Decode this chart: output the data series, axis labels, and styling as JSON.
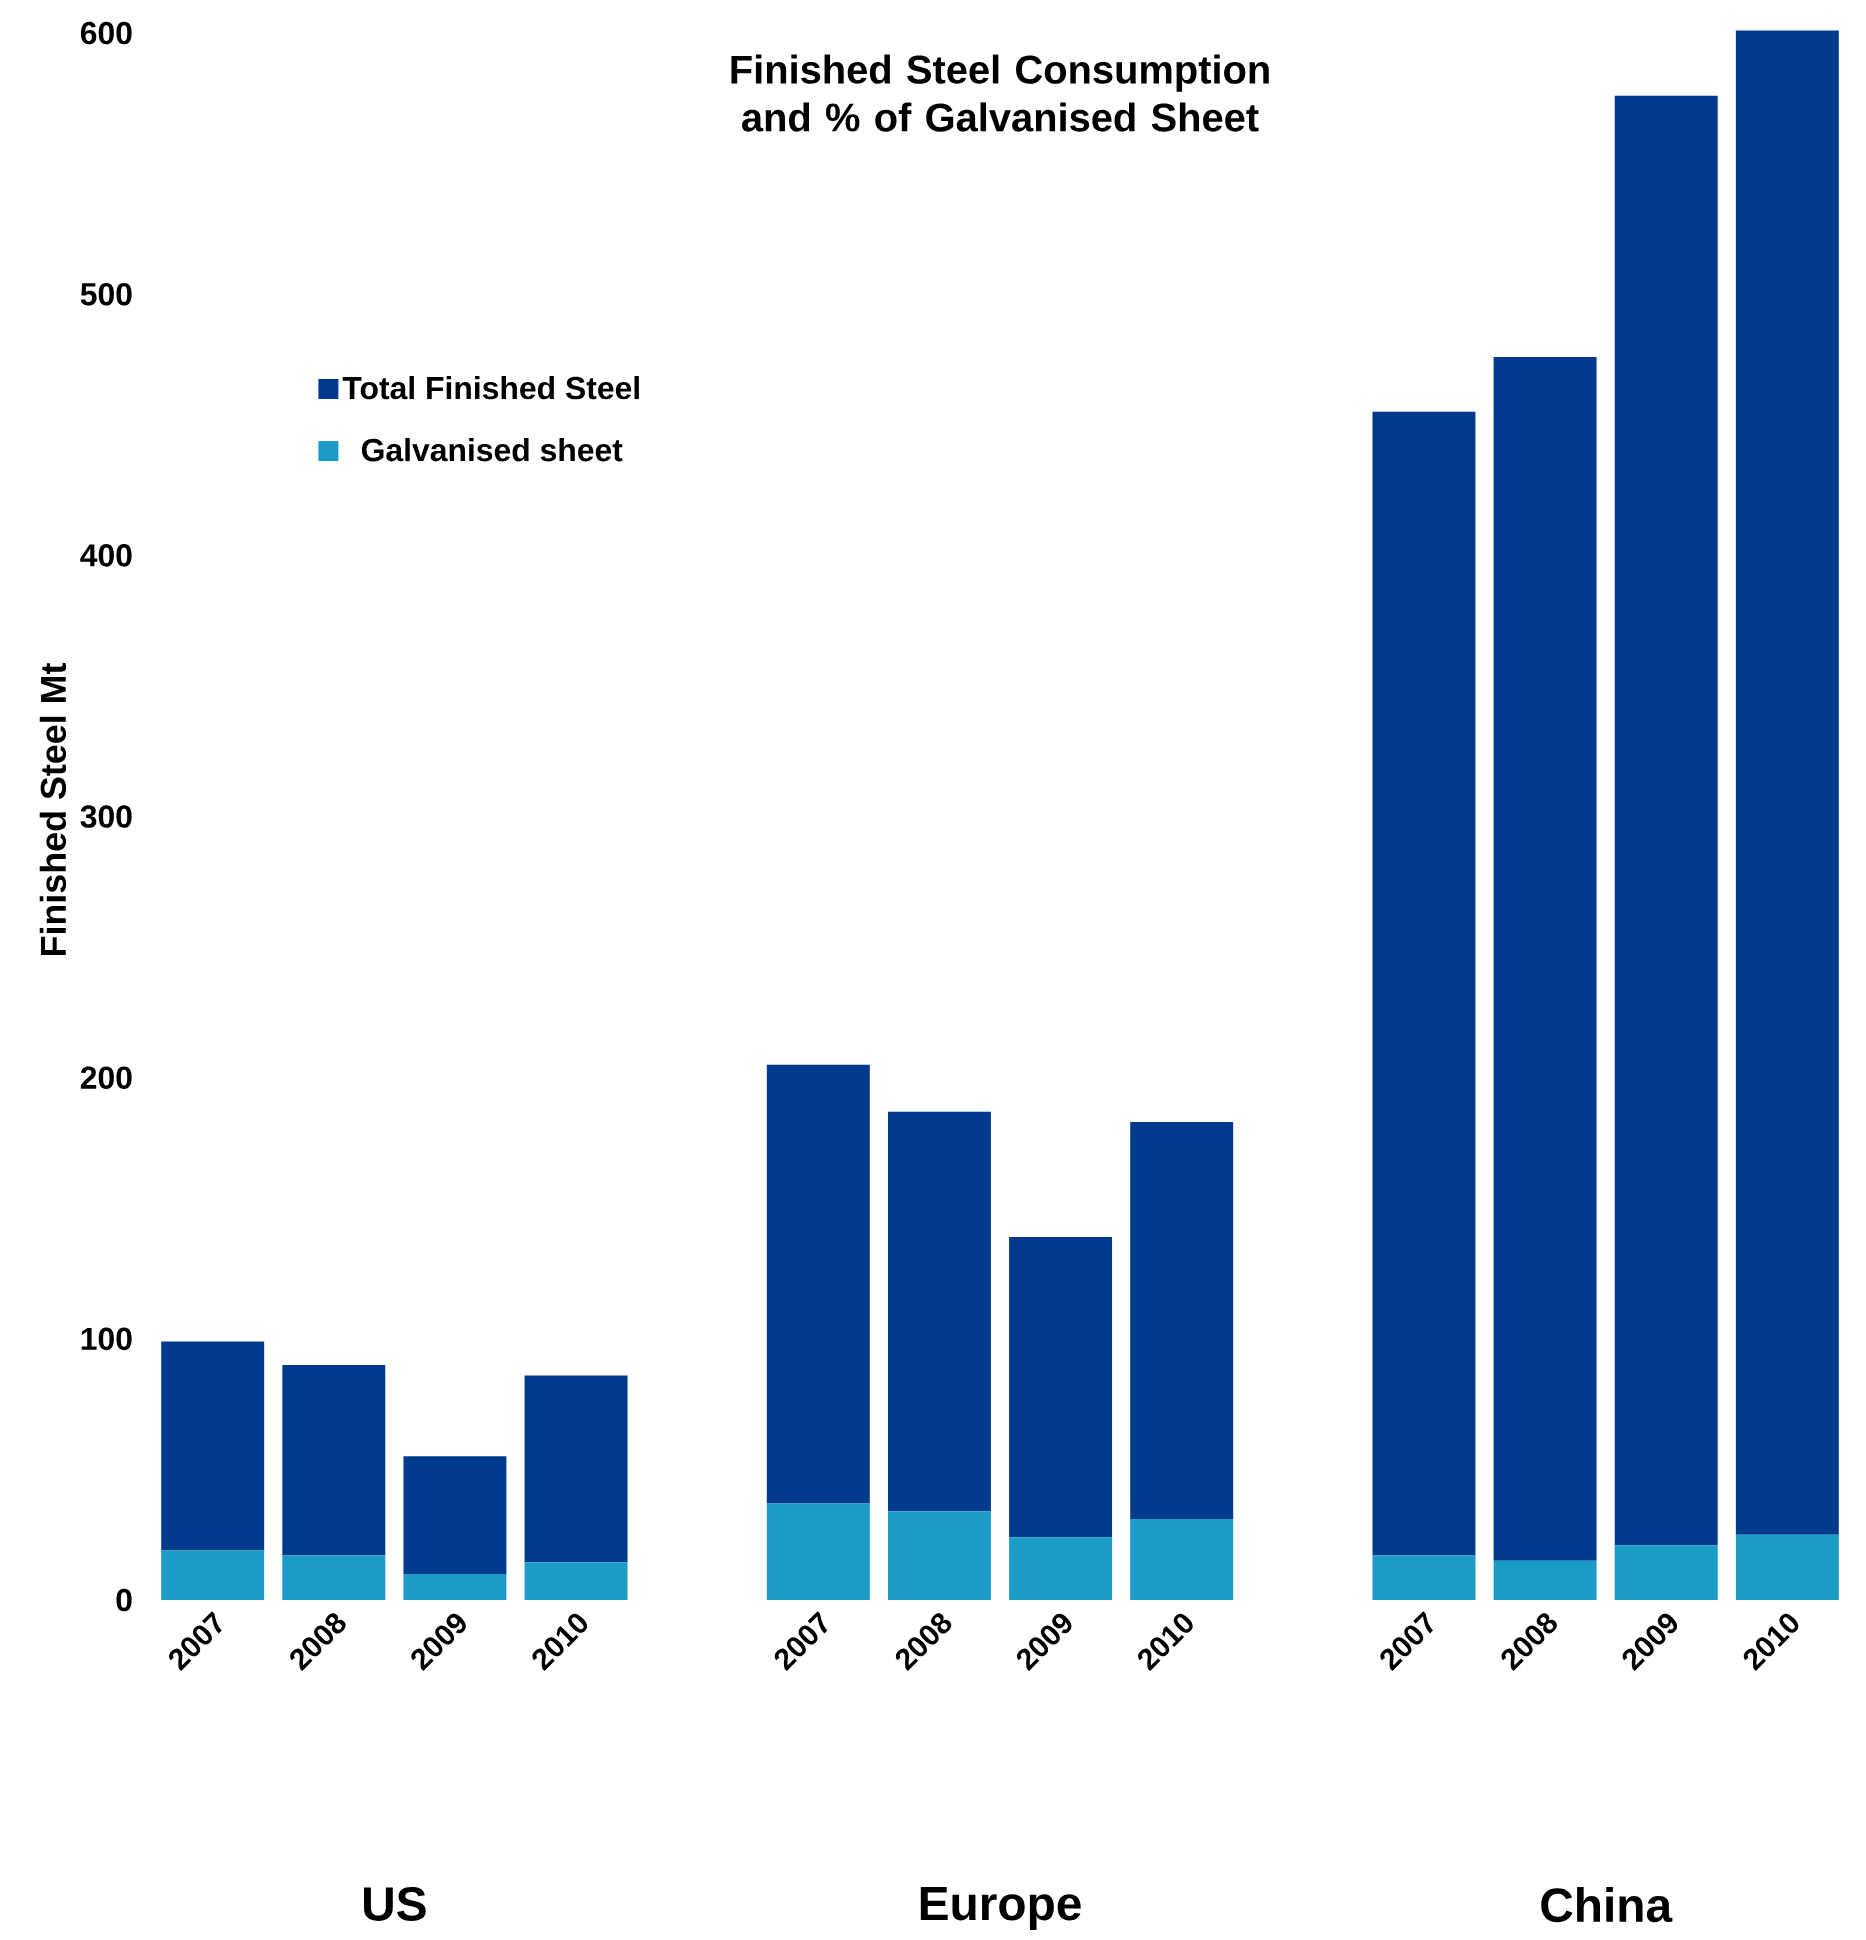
{
  "chart_data": {
    "type": "bar",
    "stacked": true,
    "title": "Finished Steel Consumption and % of Galvanised Sheet",
    "ylabel": "Finished Steel Mt",
    "categories": [
      "2007",
      "2008",
      "2009",
      "2010",
      null,
      "2007",
      "2008",
      "2009",
      "2010",
      null,
      "2007",
      "2008",
      "2009",
      "2010"
    ],
    "series": [
      {
        "name": "Galvanised sheet",
        "color": "#1a9cc7",
        "values": [
          19,
          17,
          10,
          14.5,
          null,
          37,
          34,
          24,
          31,
          null,
          17,
          15,
          21,
          25
        ]
      },
      {
        "name": "Total Finished Steel",
        "color": "#003a8c",
        "values": [
          80,
          73,
          45,
          71.5,
          null,
          168,
          153,
          115,
          152,
          null,
          438,
          461,
          555,
          576
        ]
      }
    ],
    "ylim": [
      0,
      605
    ],
    "yticks": [
      0,
      100,
      200,
      300,
      400,
      500,
      600
    ],
    "grid": false,
    "legend": "top left",
    "annotations": [
      "US",
      "Europe",
      "China"
    ]
  }
}
